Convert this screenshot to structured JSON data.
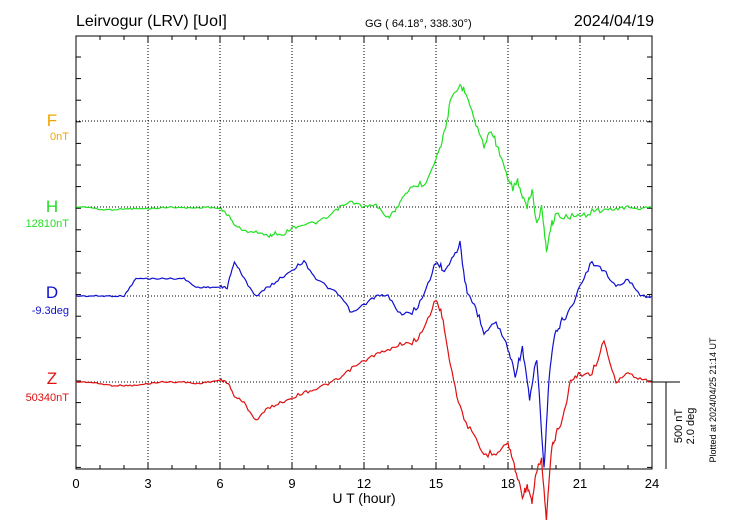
{
  "header": {
    "station": "Leirvogur (LRV)  [UoI]",
    "coords": "GG ( 64.18°, 338.30°)",
    "date": "2024/04/19"
  },
  "footer": {
    "plotted": "Plotted at 2024/04/25 21:14 UT"
  },
  "scale": {
    "nt": "500 nT",
    "deg": "2.0 deg"
  },
  "colors": {
    "F": "#f0a500",
    "H": "#22e022",
    "D": "#1010d0",
    "Z": "#e01010"
  },
  "chart_data": {
    "type": "line",
    "title": "Leirvogur (LRV)  [UoI]",
    "xlabel": "U T (hour)",
    "ylabel": "",
    "xlim": [
      0,
      24
    ],
    "x_ticks": [
      "0",
      "3",
      "6",
      "9",
      "12",
      "15",
      "18",
      "21",
      "24"
    ],
    "grid": true,
    "scale_bar": "500 nT / 2.0 deg",
    "series": [
      {
        "name": "F",
        "baseline_label": "0nT",
        "unit": "nT",
        "x": [],
        "values": []
      },
      {
        "name": "H",
        "baseline_label": "12810nT",
        "unit": "nT",
        "x": [
          0,
          0.5,
          1,
          1.5,
          2,
          2.5,
          3,
          3.5,
          4,
          4.5,
          5,
          5.5,
          6,
          6.3,
          6.6,
          7,
          7.5,
          8,
          8.3,
          8.6,
          9,
          9.5,
          10,
          10.5,
          11,
          11.5,
          12,
          12.5,
          13,
          13.3,
          13.6,
          14,
          14.5,
          15,
          15.3,
          15.6,
          16,
          16.3,
          16.6,
          17,
          17.3,
          17.6,
          18,
          18.2,
          18.4,
          18.6,
          18.8,
          19,
          19.2,
          19.4,
          19.6,
          19.8,
          20,
          20.5,
          21,
          21.5,
          22,
          22.5,
          23,
          23.5,
          24
        ],
        "values": [
          0,
          0,
          -15,
          -15,
          -10,
          -10,
          -10,
          -5,
          0,
          -5,
          -5,
          0,
          -10,
          -40,
          -100,
          -140,
          -140,
          -170,
          -150,
          -160,
          -120,
          -100,
          -90,
          -60,
          0,
          30,
          0,
          10,
          -60,
          -20,
          50,
          120,
          130,
          280,
          400,
          600,
          700,
          650,
          500,
          350,
          450,
          330,
          150,
          110,
          150,
          50,
          0,
          100,
          -100,
          0,
          -250,
          -100,
          -50,
          -50,
          -60,
          -20,
          -20,
          -10,
          0,
          -10,
          0
        ]
      },
      {
        "name": "D",
        "baseline_label": "-9.3deg",
        "unit": "deg",
        "x": [
          0,
          0.5,
          1,
          1.5,
          2,
          2.5,
          3,
          3.5,
          4,
          4.5,
          5,
          5.5,
          6,
          6.3,
          6.6,
          7,
          7.5,
          8,
          8.5,
          9,
          9.5,
          10,
          10.5,
          11,
          11.5,
          12,
          12.5,
          13,
          13.5,
          14,
          14.5,
          15,
          15.3,
          15.6,
          16,
          16.3,
          16.6,
          17,
          17.5,
          18,
          18.3,
          18.6,
          18.9,
          19.2,
          19.5,
          19.7,
          19.9,
          20.2,
          20.5,
          21,
          21.5,
          22,
          22.5,
          23,
          23.5,
          24
        ],
        "values": [
          0,
          0,
          0,
          0,
          0,
          0.4,
          0.4,
          0.4,
          0.4,
          0.4,
          0.2,
          0.2,
          0.2,
          0.2,
          0.8,
          0.4,
          0,
          0.2,
          0.4,
          0.6,
          0.8,
          0.4,
          0.2,
          0,
          -0.4,
          -0.2,
          0,
          0,
          -0.4,
          -0.4,
          0,
          0.8,
          0.6,
          0.8,
          1.2,
          0,
          -0.2,
          -0.8,
          -0.6,
          -1.2,
          -1.8,
          -1.2,
          -2.4,
          -1.4,
          -4,
          -2,
          -1,
          -0.6,
          -0.4,
          0.2,
          0.8,
          0.6,
          0.2,
          0.4,
          0,
          0
        ]
      },
      {
        "name": "Z",
        "baseline_label": "50340nT",
        "unit": "nT",
        "x": [
          0,
          0.5,
          1,
          1.5,
          2,
          2.5,
          3,
          3.5,
          4,
          4.5,
          5,
          5.5,
          6,
          6.3,
          6.6,
          7,
          7.5,
          8,
          8.5,
          9,
          9.5,
          10,
          10.5,
          11,
          11.5,
          12,
          12.5,
          13,
          13.5,
          14,
          14.5,
          15,
          15.3,
          15.6,
          16,
          16.5,
          17,
          17.5,
          18,
          18.3,
          18.6,
          18.8,
          19,
          19.2,
          19.4,
          19.6,
          19.8,
          20,
          20.3,
          20.6,
          21,
          21.5,
          22,
          22.5,
          23,
          23.5,
          24
        ],
        "values": [
          0,
          0,
          -10,
          -20,
          -20,
          -20,
          -10,
          0,
          0,
          0,
          -10,
          0,
          10,
          0,
          -80,
          -120,
          -220,
          -150,
          -120,
          -90,
          -60,
          -40,
          -10,
          20,
          80,
          120,
          160,
          180,
          220,
          220,
          300,
          480,
          360,
          100,
          -150,
          -300,
          -420,
          -400,
          -350,
          -500,
          -650,
          -600,
          -700,
          -500,
          -450,
          -800,
          -400,
          -300,
          -200,
          0,
          50,
          50,
          230,
          0,
          50,
          20,
          0
        ]
      }
    ]
  }
}
